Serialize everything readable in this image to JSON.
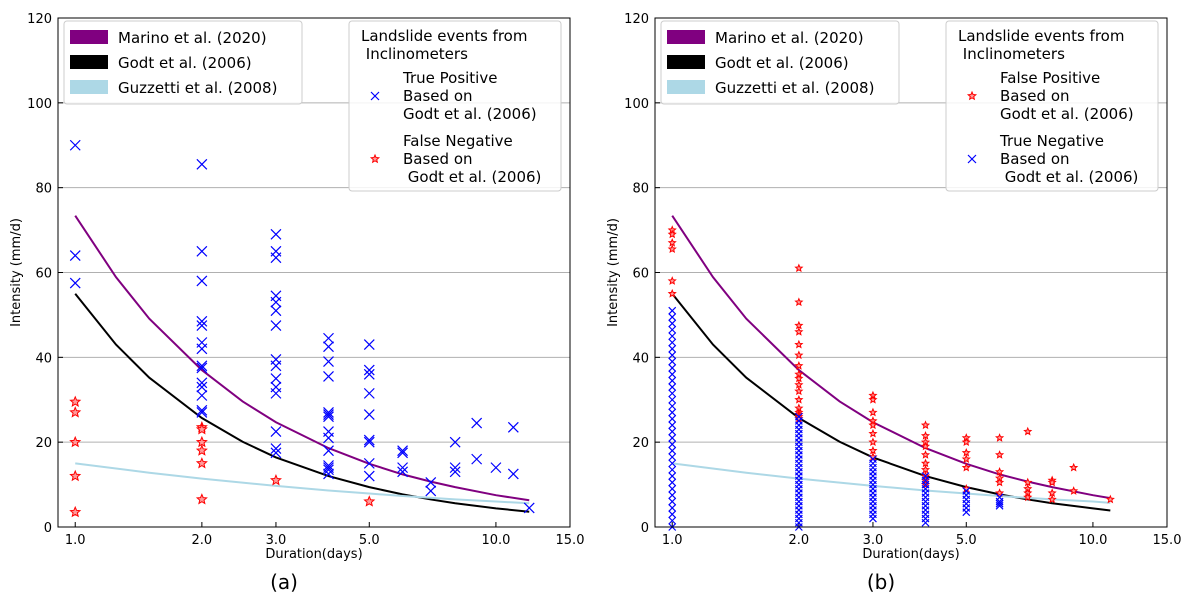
{
  "chart_data": [
    {
      "type": "line",
      "caption": "(a)",
      "x_label": "Duration(days)",
      "y_label": "Intensity (mm/d)",
      "xscale": "log",
      "xlim": [
        0.91,
        15
      ],
      "ylim": [
        0,
        120
      ],
      "grid": "y",
      "xticks": [
        {
          "value": 1,
          "label": "1.0"
        },
        {
          "value": 2,
          "label": "2.0"
        },
        {
          "value": 3,
          "label": "3.0"
        },
        {
          "value": 5,
          "label": "5.0"
        },
        {
          "value": 10,
          "label": "10.0"
        },
        {
          "value": 15,
          "label": "15.0"
        }
      ],
      "yticks": [
        0,
        20,
        40,
        60,
        80,
        100,
        120
      ],
      "legend_title": "Landslide events from\n Inclinometers",
      "series": [
        {
          "name": "Marino et al. (2020)",
          "color": "#800080",
          "mark": "line",
          "x": [
            1,
            1.25,
            1.5,
            2,
            2.5,
            3,
            4,
            5,
            6,
            7,
            8,
            10,
            12
          ],
          "values": [
            73.4,
            58.9,
            49.1,
            37.0,
            29.6,
            24.7,
            18.6,
            14.9,
            12.4,
            10.7,
            9.4,
            7.5,
            6.3
          ]
        },
        {
          "name": "Godt et al. (2006)",
          "color": "#000000",
          "mark": "line",
          "x": [
            1,
            1.25,
            1.5,
            2,
            2.5,
            3,
            4,
            5,
            6,
            7,
            8,
            10,
            12
          ],
          "values": [
            55,
            43.0,
            35.2,
            25.7,
            20.1,
            16.4,
            12.0,
            9.4,
            7.7,
            6.5,
            5.6,
            4.4,
            3.6
          ]
        },
        {
          "name": "Guzzetti et al. (2008)",
          "color": "#add8e6",
          "mark": "line",
          "x": [
            1,
            1.5,
            2,
            3,
            4,
            5,
            6,
            8,
            10,
            12
          ],
          "values": [
            15,
            12.8,
            11.4,
            9.7,
            8.6,
            7.9,
            7.3,
            6.5,
            6.0,
            5.6
          ]
        },
        {
          "name": "True Positive\nBased on\nGodt et al. (2006)",
          "color": "#0000ff",
          "mark": "x",
          "x": [
            1,
            1,
            1,
            2,
            2,
            2,
            2,
            2,
            2,
            2,
            2,
            2,
            2,
            2,
            2,
            2,
            2,
            3,
            3,
            3,
            3,
            3,
            3,
            3,
            3,
            3,
            3,
            3,
            3,
            3,
            3,
            3,
            4,
            4,
            4,
            4,
            4,
            4,
            4,
            4,
            4,
            4,
            4,
            4,
            4,
            4,
            5,
            5,
            5,
            5,
            5,
            5,
            5,
            5,
            5,
            6,
            6,
            6,
            6,
            7,
            7,
            8,
            8,
            8,
            9,
            9,
            10,
            11,
            11,
            12
          ],
          "values": [
            90,
            64,
            57.5,
            85.5,
            65,
            58,
            48.5,
            47.5,
            43.5,
            42,
            38,
            37.5,
            34,
            33,
            31,
            27.5,
            27,
            69,
            65,
            63.5,
            54.5,
            53,
            51,
            47.5,
            39.5,
            38,
            35,
            33,
            31.5,
            22.5,
            18.5,
            17.5,
            44.5,
            42.5,
            39,
            35.5,
            27,
            26.5,
            26,
            22.5,
            21,
            18,
            14.5,
            14,
            13.5,
            12.5,
            43,
            37,
            36,
            31.5,
            26.5,
            20.5,
            20,
            15,
            12,
            18,
            17.5,
            14,
            13,
            10.5,
            8.5,
            20,
            14,
            13,
            24.5,
            16,
            14,
            23.5,
            12.5,
            4.5
          ]
        },
        {
          "name": "False Negative\nBased on\n Godt et al. (2006)",
          "color": "#ff0000",
          "mark": "star",
          "x": [
            1,
            1,
            1,
            1,
            1,
            2,
            2,
            2,
            2,
            2,
            2,
            3,
            5
          ],
          "values": [
            29.5,
            27,
            20,
            12,
            3.5,
            23.5,
            23,
            20,
            18,
            15,
            6.5,
            11,
            6
          ]
        }
      ]
    },
    {
      "type": "line",
      "caption": "(b)",
      "x_label": "Duration(days)",
      "y_label": "Intensity (mm/d)",
      "xscale": "log",
      "xlim": [
        0.91,
        15
      ],
      "ylim": [
        0,
        120
      ],
      "grid": "y",
      "xticks": [
        {
          "value": 1,
          "label": "1.0"
        },
        {
          "value": 2,
          "label": "2.0"
        },
        {
          "value": 3,
          "label": "3.0"
        },
        {
          "value": 5,
          "label": "5.0"
        },
        {
          "value": 10,
          "label": "10.0"
        },
        {
          "value": 15,
          "label": "15.0"
        }
      ],
      "yticks": [
        0,
        20,
        40,
        60,
        80,
        100,
        120
      ],
      "legend_title": "Landslide events from\n Inclinometers",
      "series": [
        {
          "name": "Marino et al. (2020)",
          "color": "#800080",
          "mark": "line",
          "x": [
            1,
            1.25,
            1.5,
            2,
            2.5,
            3,
            4,
            5,
            6,
            7,
            8,
            10,
            11
          ],
          "values": [
            73.4,
            58.9,
            49.1,
            37.0,
            29.6,
            24.7,
            18.6,
            14.9,
            12.4,
            10.7,
            9.4,
            7.5,
            6.8
          ]
        },
        {
          "name": "Godt et al. (2006)",
          "color": "#000000",
          "mark": "line",
          "x": [
            1,
            1.25,
            1.5,
            2,
            2.5,
            3,
            4,
            5,
            6,
            7,
            8,
            10,
            11
          ],
          "values": [
            55,
            43.0,
            35.2,
            25.7,
            20.1,
            16.4,
            12.0,
            9.4,
            7.7,
            6.5,
            5.6,
            4.4,
            3.9
          ]
        },
        {
          "name": "Guzzetti et al. (2008)",
          "color": "#add8e6",
          "mark": "line",
          "x": [
            1,
            1.5,
            2,
            3,
            4,
            5,
            6,
            8,
            10,
            11
          ],
          "values": [
            15,
            12.8,
            11.4,
            9.7,
            8.6,
            7.9,
            7.3,
            6.5,
            6.0,
            5.7
          ]
        },
        {
          "name": "False Positive\nBased on\nGodt et al. (2006)",
          "color": "#ff0000",
          "mark": "star",
          "x": [
            1,
            1,
            1,
            1,
            1,
            1,
            2,
            2,
            2,
            2,
            2,
            2,
            2,
            2,
            2,
            2,
            2,
            2,
            2,
            2,
            2,
            2,
            2,
            3,
            3,
            3,
            3,
            3,
            3,
            3,
            3,
            3,
            4,
            4,
            4,
            4,
            4,
            4,
            4,
            4,
            4,
            4,
            5,
            5,
            5,
            5,
            5,
            5,
            6,
            6,
            6,
            6,
            6,
            6,
            7,
            7,
            7,
            7,
            7,
            8,
            8,
            8,
            8,
            9,
            9,
            11
          ],
          "values": [
            70,
            69,
            67,
            65.5,
            58,
            55,
            61,
            53,
            47.5,
            46,
            43,
            40.5,
            38,
            36,
            35,
            33.5,
            32,
            30,
            28,
            27,
            26.5,
            26,
            25.5,
            31,
            30,
            27,
            25,
            24,
            22,
            20,
            18,
            16.5,
            24,
            21.5,
            20,
            19,
            17,
            15,
            13.5,
            12,
            11,
            10,
            21,
            20,
            17.5,
            16,
            14,
            9,
            21,
            17,
            13,
            11.5,
            10.5,
            8,
            22.5,
            10.5,
            9,
            8,
            7,
            11,
            10.5,
            8,
            6.5,
            14,
            8.5,
            6.5
          ]
        },
        {
          "name": "True Negative\nBased on\n Godt et al. (2006)",
          "color": "#0000ff",
          "mark": "x",
          "x": [
            1,
            1,
            1,
            1,
            1,
            1,
            1,
            1,
            1,
            1,
            1,
            1,
            1,
            1,
            1,
            1,
            1,
            1,
            1,
            1,
            1,
            1,
            1,
            1,
            1,
            1,
            1,
            1,
            1,
            1,
            1,
            1,
            1,
            1,
            1,
            2,
            2,
            2,
            2,
            2,
            2,
            2,
            2,
            2,
            2,
            2,
            2,
            2,
            2,
            2,
            2,
            2,
            2,
            2,
            2,
            2,
            2,
            2,
            2,
            2,
            2,
            2,
            3,
            3,
            3,
            3,
            3,
            3,
            3,
            3,
            3,
            3,
            3,
            3,
            3,
            3,
            3,
            4,
            4,
            4,
            4,
            4,
            4,
            4,
            4,
            4,
            4,
            4,
            4,
            5,
            5,
            5,
            5,
            5,
            5,
            6,
            6,
            6,
            6
          ],
          "values": [
            0,
            1.5,
            3,
            4.5,
            6,
            7.5,
            9,
            10.5,
            12,
            13.5,
            15,
            16.5,
            18,
            19.5,
            21,
            22.5,
            24,
            25.5,
            27,
            28.5,
            30,
            31.5,
            33,
            34.5,
            36,
            37.5,
            39,
            40.5,
            42,
            43.5,
            45,
            46.5,
            48,
            49.5,
            51,
            0,
            1,
            2,
            3,
            4,
            5,
            6,
            7,
            8,
            9,
            10,
            11,
            12,
            13,
            14,
            15,
            16,
            17,
            18,
            19,
            20,
            21,
            22,
            23,
            24,
            25,
            26,
            2,
            3,
            4,
            5,
            6,
            7,
            8,
            9,
            10,
            11,
            12,
            13,
            14,
            15,
            16,
            1,
            2,
            3,
            4,
            5,
            6,
            7,
            8,
            9,
            10,
            11,
            12,
            3.5,
            4.5,
            5.5,
            6.5,
            7.5,
            8.5,
            5,
            5.5,
            6,
            7
          ]
        }
      ]
    }
  ]
}
